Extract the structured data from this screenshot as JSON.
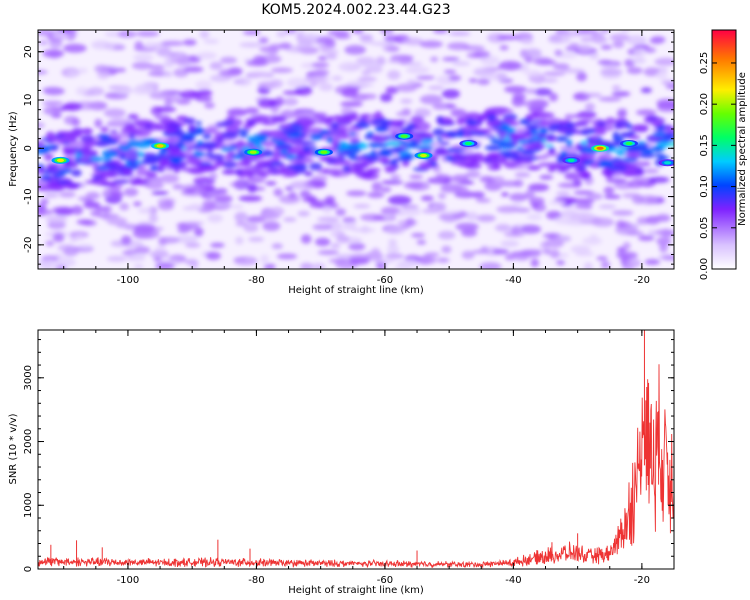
{
  "figure": {
    "title": "KOM5.2024.002.23.44.G23"
  },
  "chart_data": [
    {
      "type": "heatmap",
      "title": "KOM5.2024.002.23.44.G23",
      "xlabel": "Height of straight line (km)",
      "ylabel": "Frequency (Hz)",
      "xlim": [
        -114,
        -15
      ],
      "ylim": [
        -25,
        24.5
      ],
      "x_ticks": [
        -100,
        -80,
        -60,
        -40,
        -20
      ],
      "y_ticks": [
        -20,
        -10,
        0,
        10,
        20
      ],
      "colorbar": {
        "label": "Normalized spectral amplitude",
        "range": [
          0.0,
          0.29
        ],
        "ticks": [
          "0.00",
          "0.05",
          "0.10",
          "0.15",
          "0.20",
          "0.25"
        ],
        "tick_values": [
          0.0,
          0.05,
          0.1,
          0.15,
          0.2,
          0.25
        ],
        "colormap": "rainbow-violet-to-red"
      },
      "ridge": {
        "description_note": "",
        "center_frequency_hz": [
          [
            -112,
            -2.5
          ],
          [
            -100,
            -1.5
          ],
          [
            -90,
            1.0
          ],
          [
            -80,
            0.5
          ],
          [
            -70,
            0.0
          ],
          [
            -60,
            1.5
          ],
          [
            -55,
            0.0
          ],
          [
            -50,
            1.5
          ],
          [
            -40,
            2.5
          ],
          [
            -30,
            0.0
          ],
          [
            -25,
            0.0
          ],
          [
            -20,
            1.0
          ],
          [
            -15,
            0.5
          ]
        ],
        "peak_amplitudes": [
          {
            "x": -110.5,
            "y": -2.5,
            "v": 0.22
          },
          {
            "x": -95,
            "y": 0.5,
            "v": 0.23
          },
          {
            "x": -80.5,
            "y": -0.8,
            "v": 0.2
          },
          {
            "x": -69.5,
            "y": -0.8,
            "v": 0.19
          },
          {
            "x": -57,
            "y": 2.5,
            "v": 0.18
          },
          {
            "x": -54,
            "y": -1.5,
            "v": 0.21
          },
          {
            "x": -47,
            "y": 1.0,
            "v": 0.16
          },
          {
            "x": -31,
            "y": -2.5,
            "v": 0.15
          },
          {
            "x": -26.5,
            "y": 0.0,
            "v": 0.26
          },
          {
            "x": -22,
            "y": 1.0,
            "v": 0.17
          },
          {
            "x": -16,
            "y": -3.0,
            "v": 0.14
          }
        ]
      }
    },
    {
      "type": "line",
      "xlabel": "Height of straight line (km)",
      "ylabel": "SNR (10 * v/v)",
      "xlim": [
        -114,
        -15
      ],
      "ylim": [
        0,
        3750
      ],
      "x_ticks": [
        -100,
        -80,
        -60,
        -40,
        -20
      ],
      "y_ticks": [
        0,
        1000,
        2000,
        3000
      ],
      "series_color": "#ee3333",
      "envelope": [
        [
          -114,
          150
        ],
        [
          -105,
          140
        ],
        [
          -95,
          130
        ],
        [
          -86,
          140
        ],
        [
          -75,
          120
        ],
        [
          -65,
          110
        ],
        [
          -55,
          100
        ],
        [
          -45,
          90
        ],
        [
          -40,
          130
        ],
        [
          -35,
          260
        ],
        [
          -31,
          330
        ],
        [
          -28,
          250
        ],
        [
          -25,
          300
        ],
        [
          -23,
          750
        ],
        [
          -21.5,
          1350
        ],
        [
          -20.5,
          1900
        ],
        [
          -20,
          2700
        ],
        [
          -19.6,
          3250
        ],
        [
          -19.3,
          2700
        ],
        [
          -18.5,
          2300
        ],
        [
          -17.5,
          2450
        ],
        [
          -16.5,
          2300
        ],
        [
          -15.5,
          2000
        ],
        [
          -15,
          1700
        ]
      ],
      "spikes": [
        {
          "x": -112,
          "y": 380
        },
        {
          "x": -108,
          "y": 450
        },
        {
          "x": -104,
          "y": 340
        },
        {
          "x": -86,
          "y": 460
        },
        {
          "x": -81,
          "y": 320
        },
        {
          "x": -55,
          "y": 290
        },
        {
          "x": -34,
          "y": 420
        },
        {
          "x": -30,
          "y": 560
        },
        {
          "x": -19.6,
          "y": 3750
        }
      ]
    }
  ]
}
